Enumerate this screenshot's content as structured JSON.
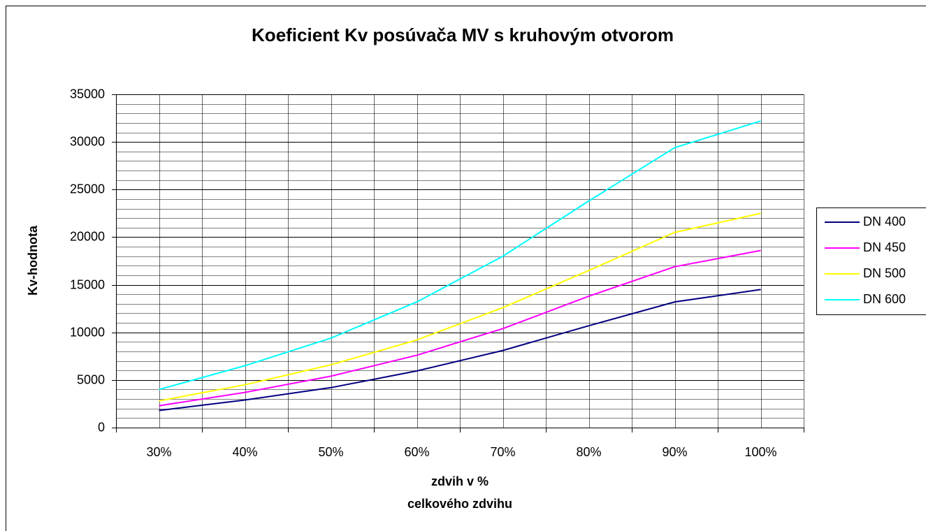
{
  "chart_data": {
    "type": "line",
    "title": "Koeficient Kv posúvača MV s kruhovým otvorom",
    "xlabel": [
      "zdvih v %",
      "celkového zdvihu"
    ],
    "ylabel": "Kv-hodnota",
    "categories": [
      "30%",
      "40%",
      "50%",
      "60%",
      "70%",
      "80%",
      "90%",
      "100%"
    ],
    "series": [
      {
        "name": "DN 400",
        "color": "#000080",
        "values": [
          1800,
          2900,
          4200,
          5950,
          8100,
          10700,
          13200,
          14500
        ]
      },
      {
        "name": "DN 450",
        "color": "#ff00ff",
        "values": [
          2300,
          3700,
          5400,
          7600,
          10400,
          13800,
          16900,
          18600
        ]
      },
      {
        "name": "DN 500",
        "color": "#ffff00",
        "values": [
          2800,
          4500,
          6600,
          9200,
          12600,
          16500,
          20500,
          22500
        ]
      },
      {
        "name": "DN 600",
        "color": "#00ffff",
        "values": [
          4000,
          6500,
          9400,
          13200,
          18000,
          23800,
          29400,
          32200
        ]
      }
    ],
    "ylim": [
      0,
      35000
    ],
    "yticks": [
      0,
      5000,
      10000,
      15000,
      20000,
      25000,
      30000,
      35000
    ],
    "minor_grid_step": 1000,
    "grid": true,
    "legend": "right"
  }
}
